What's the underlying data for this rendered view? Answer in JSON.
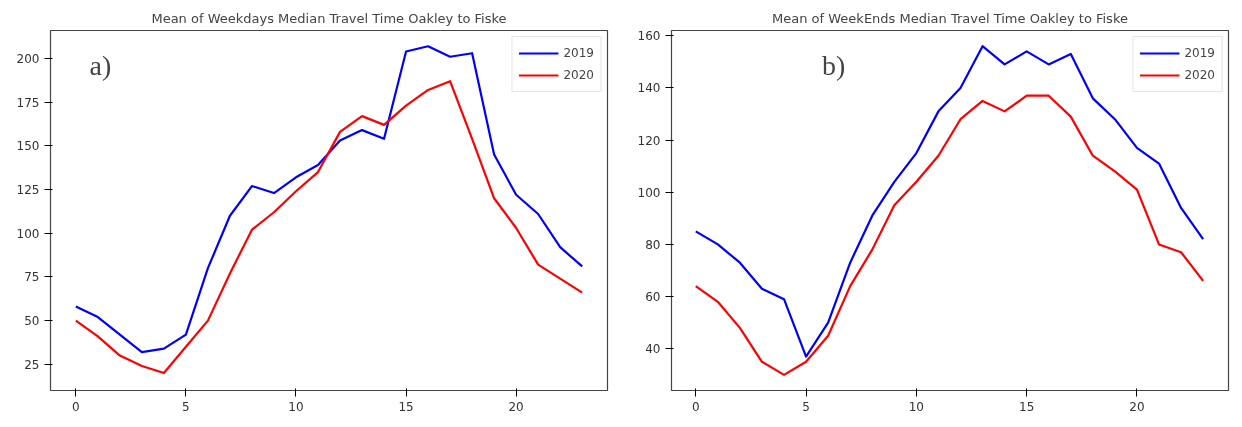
{
  "chart_data": [
    {
      "type": "line",
      "title": "Mean of Weekdays Median Travel Time Oakley to Fiske",
      "annotations": [
        "a)"
      ],
      "x": [
        0,
        1,
        2,
        3,
        4,
        5,
        6,
        7,
        8,
        9,
        10,
        11,
        12,
        13,
        14,
        15,
        16,
        17,
        18,
        19,
        20,
        21,
        22,
        23
      ],
      "series": [
        {
          "name": "2019",
          "color": "#0000ff",
          "values": [
            58,
            52,
            42,
            32,
            34,
            42,
            80,
            110,
            127,
            123,
            132,
            139,
            153,
            159,
            154,
            204,
            207,
            201,
            203,
            145,
            122,
            111,
            92,
            81
          ]
        },
        {
          "name": "2020",
          "color": "#ff0000",
          "values": [
            50,
            41,
            30,
            24,
            20,
            35,
            50,
            77,
            102,
            112,
            124,
            135,
            158,
            167,
            162,
            173,
            182,
            187,
            154,
            120,
            103,
            82,
            74,
            66
          ]
        }
      ],
      "xlim": [
        -1.15,
        24.15
      ],
      "xticks": [
        0,
        5,
        10,
        15,
        20
      ],
      "ylim": [
        10,
        216
      ],
      "yticks": [
        25,
        50,
        75,
        100,
        125,
        150,
        175,
        200
      ],
      "grid": false,
      "legend": "top right",
      "marker": "none",
      "line_style": "solid"
    },
    {
      "type": "line",
      "title": "Mean of WeekEnds Median Travel Time Oakley to Fiske",
      "annotations": [
        "b)"
      ],
      "x": [
        0,
        1,
        2,
        3,
        4,
        5,
        6,
        7,
        8,
        9,
        10,
        11,
        12,
        13,
        14,
        15,
        16,
        17,
        18,
        19,
        20,
        21,
        22,
        23
      ],
      "series": [
        {
          "name": "2019",
          "color": "#0000ff",
          "values": [
            85,
            80,
            73,
            63,
            59,
            37,
            50,
            73,
            91,
            104,
            115,
            131,
            140,
            156,
            149,
            154,
            149,
            153,
            136,
            128,
            117,
            111,
            94,
            82
          ]
        },
        {
          "name": "2020",
          "color": "#ff0000",
          "values": [
            64,
            58,
            48,
            35,
            30,
            35,
            45,
            64,
            78,
            95,
            104,
            114,
            128,
            135,
            131,
            137,
            137,
            129,
            114,
            108,
            101,
            80,
            77,
            66
          ]
        }
      ],
      "xlim": [
        -1.1,
        24.15
      ],
      "xticks": [
        0,
        5,
        10,
        15,
        20
      ],
      "ylim": [
        24,
        162
      ],
      "yticks": [
        40,
        60,
        80,
        100,
        120,
        140,
        160
      ],
      "grid": false,
      "legend": "top right",
      "marker": "none",
      "line_style": "solid"
    }
  ]
}
